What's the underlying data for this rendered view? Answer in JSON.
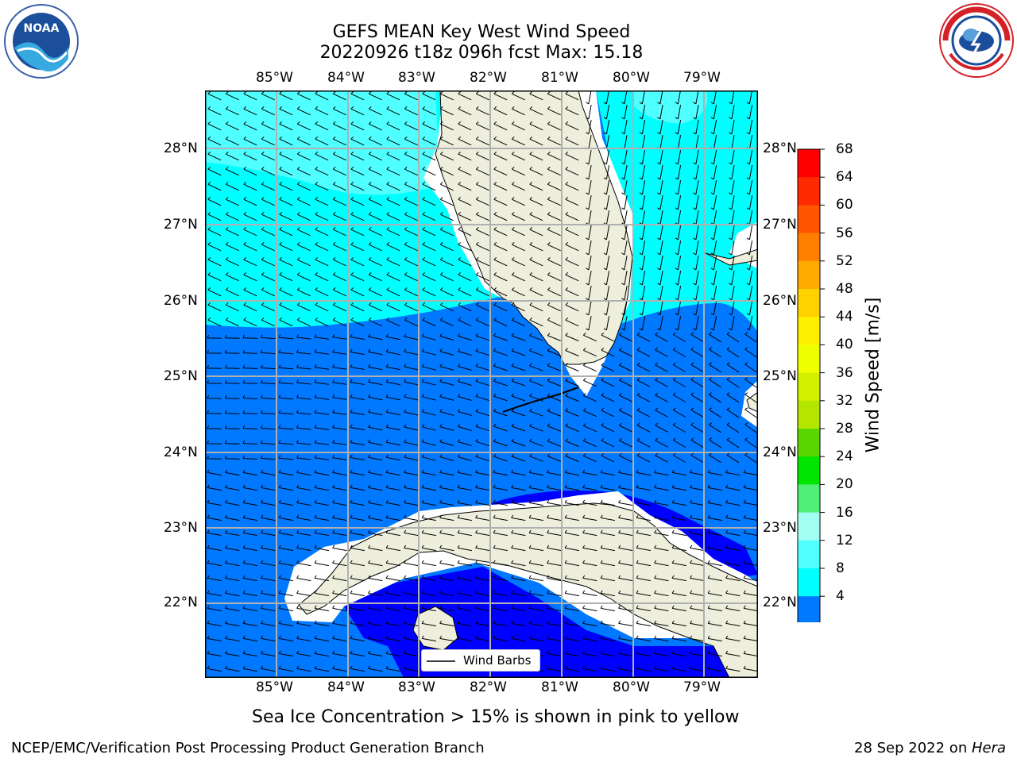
{
  "title_line1": "GEFS MEAN Key West Wind Speed",
  "title_line2": "20220926 t18z 096h fcst   Max: 15.18",
  "longitude_labels": [
    "85°W",
    "84°W",
    "83°W",
    "82°W",
    "81°W",
    "80°W",
    "79°W"
  ],
  "latitude_labels": [
    "28°N",
    "27°N",
    "26°N",
    "25°N",
    "24°N",
    "23°N",
    "22°N"
  ],
  "colorbar": {
    "label": "Wind Speed [m/s]",
    "ticks": [
      "68",
      "64",
      "60",
      "56",
      "52",
      "48",
      "44",
      "40",
      "36",
      "32",
      "28",
      "24",
      "20",
      "16",
      "12",
      "8",
      "4"
    ],
    "colors": [
      "#ff0000",
      "#ff2a00",
      "#ff5500",
      "#ff8000",
      "#ffaa00",
      "#ffd200",
      "#fff000",
      "#f0ff00",
      "#d2f000",
      "#b4e600",
      "#5ad700",
      "#00e600",
      "#50f078",
      "#a0fff0",
      "#50ffff",
      "#00ffff",
      "#0078ff"
    ]
  },
  "legend": {
    "label": "Wind Barbs"
  },
  "caption": "Sea Ice Concentration > 15% is shown in pink to yellow",
  "footer_left": "NCEP/EMC/Verification Post Processing Product Generation Branch",
  "footer_right_date": "28 Sep 2022 on ",
  "footer_right_host": "Hera",
  "logos": {
    "left": "noaa-logo",
    "right": "nws-logo",
    "noaa_text": "NOAA",
    "nws_text": "NATIONAL WEATHER SERVICE"
  },
  "colors": {
    "land": "#eeeedc",
    "speed_4_8": "#0078ff",
    "speed_8_12": "#00ffff",
    "speed_12_16": "#50ffff",
    "speed_below_4": "#0000ff",
    "grid": "#b0b0b0"
  }
}
